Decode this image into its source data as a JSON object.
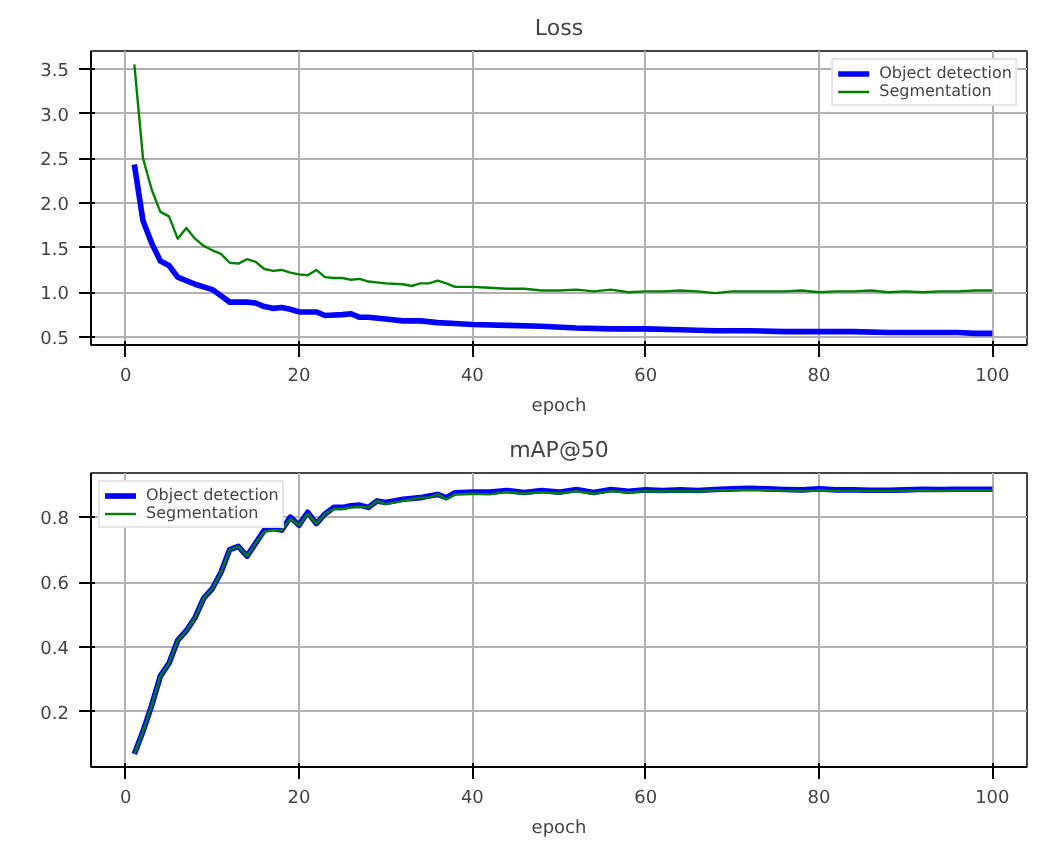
{
  "chart_data": [
    {
      "type": "line",
      "title": "Loss",
      "xlabel": "epoch",
      "xlim": [
        -4,
        104
      ],
      "ylim": [
        0.41,
        3.7
      ],
      "xticks": [
        0,
        20,
        40,
        60,
        80,
        100
      ],
      "yticks": [
        {
          "value": 0.5,
          "label": "0.5"
        },
        {
          "value": 1.0,
          "label": "1.0"
        },
        {
          "value": 1.5,
          "label": "1.5"
        },
        {
          "value": 2.0,
          "label": "2.0"
        },
        {
          "value": 2.5,
          "label": "2.5"
        },
        {
          "value": 3.0,
          "label": "3.0"
        },
        {
          "value": 3.5,
          "label": "3.5"
        }
      ],
      "grid": true,
      "legend": "top right",
      "line_style": "solid",
      "marker": "none",
      "series": [
        {
          "name": "Object detection",
          "color": "#0000ff",
          "x": [
            1,
            2,
            3,
            4,
            5,
            6,
            7,
            8,
            9,
            10,
            11,
            12,
            13,
            14,
            15,
            16,
            17,
            18,
            19,
            20,
            22,
            23,
            25,
            26,
            27,
            28,
            30,
            32,
            34,
            36,
            38,
            40,
            44,
            48,
            52,
            56,
            60,
            64,
            68,
            72,
            76,
            80,
            84,
            88,
            92,
            96,
            98,
            100
          ],
          "values": [
            2.43,
            1.8,
            1.55,
            1.35,
            1.3,
            1.17,
            1.13,
            1.09,
            1.06,
            1.03,
            0.96,
            0.89,
            0.89,
            0.89,
            0.88,
            0.84,
            0.82,
            0.83,
            0.81,
            0.78,
            0.78,
            0.74,
            0.75,
            0.76,
            0.72,
            0.72,
            0.7,
            0.68,
            0.68,
            0.66,
            0.65,
            0.64,
            0.63,
            0.62,
            0.6,
            0.59,
            0.59,
            0.58,
            0.57,
            0.57,
            0.56,
            0.56,
            0.56,
            0.55,
            0.55,
            0.55,
            0.54,
            0.54
          ]
        },
        {
          "name": "Segmentation",
          "color": "#008000",
          "x": [
            1,
            2,
            3,
            4,
            5,
            6,
            7,
            8,
            9,
            10,
            11,
            12,
            13,
            14,
            15,
            16,
            17,
            18,
            19,
            20,
            21,
            22,
            23,
            24,
            25,
            26,
            27,
            28,
            30,
            32,
            33,
            34,
            35,
            36,
            37,
            38,
            40,
            42,
            44,
            46,
            48,
            50,
            52,
            54,
            56,
            58,
            60,
            62,
            64,
            66,
            68,
            70,
            72,
            74,
            76,
            78,
            80,
            82,
            84,
            86,
            88,
            90,
            92,
            94,
            96,
            98,
            100
          ],
          "values": [
            3.55,
            2.5,
            2.15,
            1.9,
            1.85,
            1.6,
            1.72,
            1.6,
            1.52,
            1.47,
            1.43,
            1.33,
            1.32,
            1.37,
            1.34,
            1.26,
            1.24,
            1.25,
            1.22,
            1.2,
            1.19,
            1.25,
            1.17,
            1.16,
            1.16,
            1.14,
            1.15,
            1.12,
            1.1,
            1.09,
            1.07,
            1.1,
            1.1,
            1.13,
            1.1,
            1.06,
            1.06,
            1.05,
            1.04,
            1.04,
            1.02,
            1.02,
            1.03,
            1.01,
            1.03,
            1.0,
            1.01,
            1.01,
            1.02,
            1.01,
            0.99,
            1.01,
            1.01,
            1.01,
            1.01,
            1.02,
            1.0,
            1.01,
            1.01,
            1.02,
            1.0,
            1.01,
            1.0,
            1.01,
            1.01,
            1.02,
            1.02
          ]
        }
      ]
    },
    {
      "type": "line",
      "title": "mAP@50",
      "xlabel": "epoch",
      "xlim": [
        -4,
        104
      ],
      "ylim": [
        0.03,
        0.936
      ],
      "xticks": [
        0,
        20,
        40,
        60,
        80,
        100
      ],
      "yticks": [
        0.2,
        0.4,
        0.6,
        0.8
      ],
      "grid": true,
      "legend": "top left",
      "line_style": "solid",
      "marker": "none",
      "series": [
        {
          "name": "Object detection",
          "color": "#0000ff",
          "x": [
            1,
            2,
            3,
            4,
            5,
            6,
            7,
            8,
            9,
            10,
            11,
            12,
            13,
            14,
            15,
            16,
            17,
            18,
            19,
            20,
            21,
            22,
            23,
            24,
            25,
            26,
            27,
            28,
            29,
            30,
            32,
            34,
            35,
            36,
            37,
            38,
            40,
            42,
            44,
            46,
            48,
            50,
            52,
            54,
            56,
            58,
            60,
            62,
            64,
            66,
            68,
            70,
            72,
            74,
            76,
            78,
            80,
            82,
            84,
            86,
            88,
            90,
            92,
            94,
            96,
            98,
            100
          ],
          "values": [
            0.07,
            0.14,
            0.22,
            0.31,
            0.35,
            0.42,
            0.45,
            0.49,
            0.55,
            0.58,
            0.63,
            0.7,
            0.71,
            0.68,
            0.72,
            0.76,
            0.765,
            0.76,
            0.8,
            0.775,
            0.815,
            0.78,
            0.81,
            0.83,
            0.83,
            0.835,
            0.837,
            0.83,
            0.85,
            0.845,
            0.855,
            0.86,
            0.865,
            0.87,
            0.86,
            0.875,
            0.877,
            0.877,
            0.882,
            0.876,
            0.882,
            0.877,
            0.885,
            0.876,
            0.885,
            0.88,
            0.884,
            0.882,
            0.884,
            0.882,
            0.885,
            0.887,
            0.889,
            0.887,
            0.885,
            0.884,
            0.887,
            0.884,
            0.884,
            0.883,
            0.883,
            0.884,
            0.886,
            0.885,
            0.886,
            0.886,
            0.886
          ]
        },
        {
          "name": "Segmentation",
          "color": "#008000",
          "x": [
            1,
            2,
            3,
            4,
            5,
            6,
            7,
            8,
            9,
            10,
            11,
            12,
            13,
            14,
            15,
            16,
            17,
            18,
            19,
            20,
            21,
            22,
            23,
            24,
            25,
            26,
            27,
            28,
            29,
            30,
            32,
            34,
            35,
            36,
            37,
            38,
            40,
            42,
            44,
            46,
            48,
            50,
            52,
            54,
            56,
            58,
            60,
            62,
            64,
            66,
            68,
            70,
            72,
            74,
            76,
            78,
            80,
            82,
            84,
            86,
            88,
            90,
            92,
            94,
            96,
            98,
            100
          ],
          "values": [
            0.07,
            0.14,
            0.22,
            0.31,
            0.35,
            0.42,
            0.45,
            0.49,
            0.55,
            0.58,
            0.63,
            0.7,
            0.71,
            0.68,
            0.72,
            0.755,
            0.76,
            0.76,
            0.795,
            0.775,
            0.81,
            0.78,
            0.81,
            0.825,
            0.825,
            0.83,
            0.832,
            0.83,
            0.85,
            0.84,
            0.85,
            0.86,
            0.86,
            0.87,
            0.855,
            0.87,
            0.872,
            0.87,
            0.878,
            0.872,
            0.877,
            0.873,
            0.88,
            0.872,
            0.88,
            0.876,
            0.88,
            0.879,
            0.88,
            0.879,
            0.882,
            0.883,
            0.884,
            0.883,
            0.881,
            0.88,
            0.882,
            0.881,
            0.881,
            0.88,
            0.88,
            0.881,
            0.882,
            0.881,
            0.882,
            0.882,
            0.882
          ]
        }
      ]
    }
  ]
}
